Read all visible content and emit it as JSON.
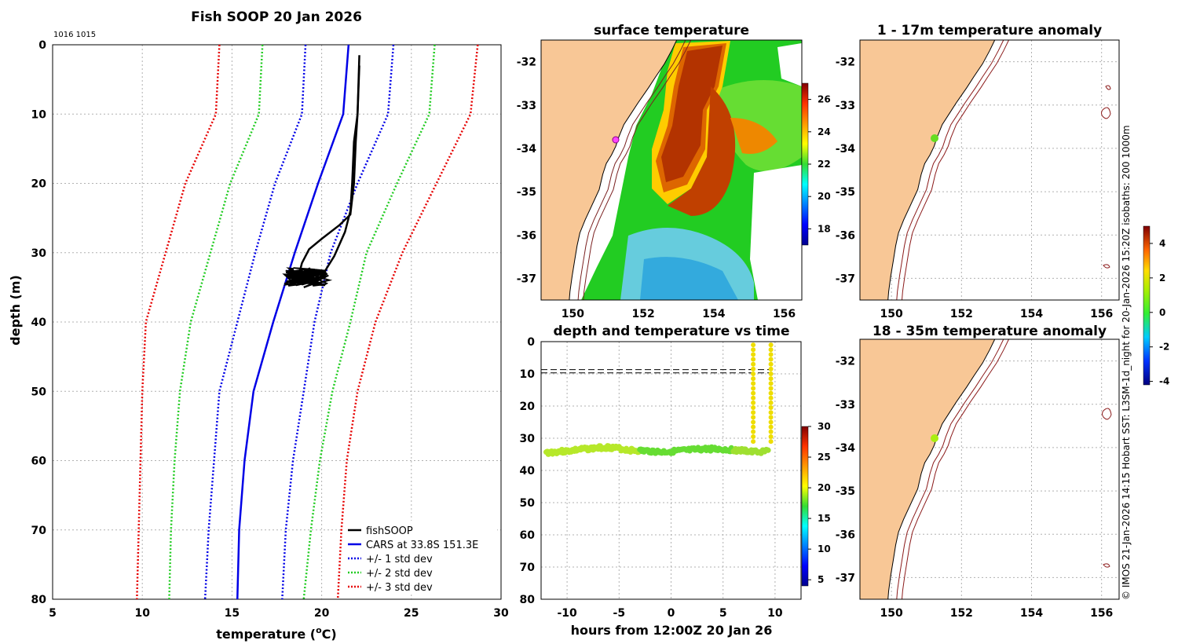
{
  "colors": {
    "land": "#f8c796",
    "cars": "#0000e6",
    "fish": "#000000",
    "sd1": "#0000e6",
    "sd2": "#22cc22",
    "sd3": "#e60000",
    "grid": "#b0b0b0"
  },
  "chart_data": [
    {
      "type": "line",
      "name": "profile",
      "title": "Fish SOOP 20 Jan 2026",
      "corner_label": "1016 1015",
      "xlabel": "temperature (",
      "xlabel_unit": "C)",
      "xlabel_degree": "o",
      "ylabel": "depth (m)",
      "xlim": [
        5,
        30
      ],
      "ylim": [
        0,
        80
      ],
      "xticks": [
        "5",
        "10",
        "15",
        "20",
        "25",
        "30"
      ],
      "yticks": [
        "0",
        "10",
        "20",
        "30",
        "40",
        "50",
        "60",
        "70",
        "80"
      ],
      "depths": [
        0,
        10,
        20,
        30,
        40,
        50,
        60,
        70,
        80
      ],
      "series": [
        {
          "name": "CARS at 33.8S 151.3E",
          "style": "solid",
          "color": "#0000e6",
          "temps": [
            21.5,
            21.2,
            19.8,
            18.5,
            17.3,
            16.2,
            15.7,
            15.4,
            15.3
          ]
        },
        {
          "name": "+1 std dev",
          "style": "dotted",
          "color": "#0000e6",
          "temps": [
            24.0,
            23.7,
            22.0,
            20.5,
            19.6,
            19.0,
            18.4,
            18.0,
            17.8
          ]
        },
        {
          "name": "-1 std dev",
          "style": "dotted",
          "color": "#0000e6",
          "temps": [
            19.1,
            18.9,
            17.4,
            16.3,
            15.3,
            14.3,
            14.0,
            13.7,
            13.5
          ]
        },
        {
          "name": "+2 std dev",
          "style": "dotted",
          "color": "#22cc22",
          "temps": [
            26.3,
            26.0,
            24.2,
            22.5,
            21.6,
            20.6,
            19.9,
            19.4,
            19.0
          ]
        },
        {
          "name": "-2 std dev",
          "style": "dotted",
          "color": "#22cc22",
          "temps": [
            16.7,
            16.5,
            14.9,
            13.8,
            12.7,
            12.1,
            11.8,
            11.6,
            11.5
          ]
        },
        {
          "name": "+3 std dev",
          "style": "dotted",
          "color": "#e60000",
          "temps": [
            28.7,
            28.3,
            26.4,
            24.5,
            23.0,
            22.0,
            21.4,
            21.1,
            20.9
          ]
        },
        {
          "name": "-3 std dev",
          "style": "dotted",
          "color": "#e60000",
          "temps": [
            14.3,
            14.1,
            12.4,
            11.3,
            10.2,
            10.0,
            9.9,
            9.8,
            9.7
          ]
        }
      ],
      "fishsoop": {
        "name": "fishSOOP",
        "down": [
          [
            22.1,
            1.5
          ],
          [
            22.0,
            10
          ],
          [
            21.8,
            14
          ],
          [
            21.7,
            20
          ],
          [
            21.6,
            24
          ],
          [
            21.3,
            27
          ],
          [
            20.7,
            30.5
          ],
          [
            20.1,
            33
          ],
          [
            19.5,
            34.5
          ],
          [
            19.0,
            35
          ]
        ],
        "up": [
          [
            18.7,
            33.5
          ],
          [
            18.9,
            31.5
          ],
          [
            19.3,
            29.5
          ],
          [
            20.0,
            28
          ],
          [
            21.0,
            26
          ],
          [
            21.6,
            24.5
          ],
          [
            21.8,
            20
          ],
          [
            21.9,
            14
          ],
          [
            22.0,
            10
          ],
          [
            22.1,
            3
          ]
        ],
        "cluster_center": [
          19.0,
          33.5
        ]
      },
      "legend": [
        "fishSOOP",
        "CARS at 33.8S 151.3E",
        "+/- 1 std dev",
        "+/- 2 std dev",
        "+/- 3 std dev"
      ]
    },
    {
      "type": "heatmap",
      "name": "surface-temperature",
      "title": "surface temperature",
      "xticks": [
        "150",
        "152",
        "154",
        "156"
      ],
      "yticks": [
        "-32",
        "-33",
        "-34",
        "-35",
        "-36",
        "-37"
      ],
      "lon_range": [
        149.1,
        156.5
      ],
      "lat_range": [
        -37.5,
        -31.5
      ],
      "colorbar": {
        "ticks": [
          "26",
          "24",
          "22",
          "20",
          "18"
        ],
        "range": [
          17,
          27
        ]
      }
    },
    {
      "type": "scatter",
      "name": "depth-time",
      "title": "depth and temperature vs time",
      "xlabel": "hours from 12:00Z 20 Jan 26",
      "xticks": [
        "-10",
        "-5",
        "0",
        "5",
        "10"
      ],
      "yticks": [
        "0",
        "10",
        "20",
        "30",
        "40",
        "50",
        "60",
        "70",
        "80"
      ],
      "xlim": [
        -12.5,
        12.5
      ],
      "ylim": [
        0,
        80
      ],
      "dashed_depths": [
        8.7,
        9.7
      ],
      "dashed_x_range": [
        -12.5,
        9.5
      ],
      "points": [
        [
          -12,
          34.5
        ],
        [
          -11,
          34.2
        ],
        [
          -10,
          34.0
        ],
        [
          -9,
          33.6
        ],
        [
          -8,
          33.3
        ],
        [
          -7,
          33.0
        ],
        [
          -6,
          32.8
        ],
        [
          -5,
          33.2
        ],
        [
          -4,
          33.7
        ],
        [
          -3,
          33.9
        ],
        [
          -2,
          34.0
        ],
        [
          -1,
          34.3
        ],
        [
          0,
          34.1
        ],
        [
          1,
          33.9
        ],
        [
          2,
          33.7
        ],
        [
          3,
          33.4
        ],
        [
          4,
          33.3
        ],
        [
          5,
          33.5
        ],
        [
          6,
          33.6
        ],
        [
          7,
          33.9
        ],
        [
          7.8,
          34.3
        ],
        [
          9.5,
          34.0
        ]
      ],
      "profile_x": [
        7.9,
        9.6
      ],
      "colorbar": {
        "ticks": [
          "30",
          "25",
          "20",
          "15",
          "10",
          "5"
        ],
        "range": [
          4,
          30
        ]
      }
    },
    {
      "type": "heatmap",
      "name": "anomaly-1-17",
      "title": "1 - 17m temperature anomaly",
      "xticks": [
        "150",
        "152",
        "154",
        "156"
      ],
      "yticks": [
        "-32",
        "-33",
        "-34",
        "-35",
        "-36",
        "-37"
      ],
      "marker": [
        151.3,
        -33.8
      ]
    },
    {
      "type": "heatmap",
      "name": "anomaly-18-35",
      "title": "18 - 35m temperature anomaly",
      "xticks": [
        "150",
        "152",
        "154",
        "156"
      ],
      "yticks": [
        "-32",
        "-33",
        "-34",
        "-35",
        "-36",
        "-37"
      ],
      "marker": [
        151.3,
        -33.8
      ],
      "colorbar": {
        "ticks": [
          "4",
          "2",
          "0",
          "-2",
          "-4"
        ],
        "range": [
          -4.2,
          5
        ]
      }
    }
  ],
  "credit": "© IMOS 21-Jan-2026 14:15 Hobart SST: L3SM-1d_night for 20-Jan-2026 15:20Z isobaths: 200  1000m"
}
